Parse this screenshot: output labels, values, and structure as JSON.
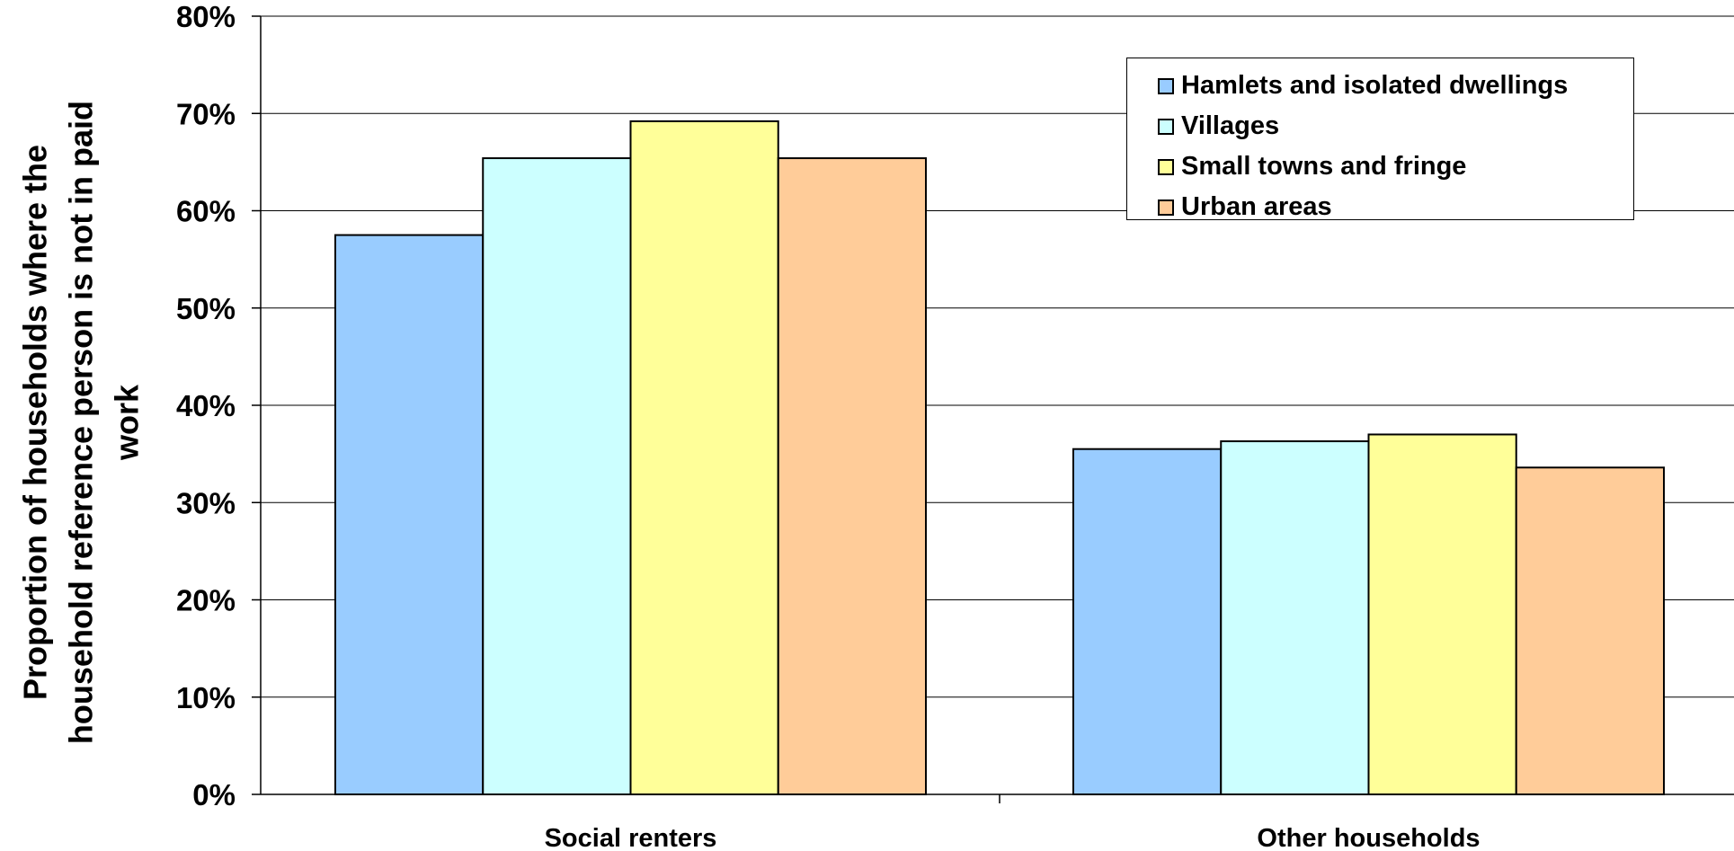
{
  "chart_data": {
    "type": "bar",
    "ylabel": "Proportion of households where the household reference person is not in paid work",
    "xlabel": "",
    "categories": [
      "Social renters",
      "Other households"
    ],
    "ylim": [
      0,
      80
    ],
    "yticks": [
      "0%",
      "10%",
      "20%",
      "30%",
      "40%",
      "50%",
      "60%",
      "70%",
      "80%"
    ],
    "grid": true,
    "legend_position": "top-right",
    "series": [
      {
        "name": "Hamlets and isolated dwellings",
        "color": "#99CCFF",
        "values": [
          57.5,
          35.5
        ]
      },
      {
        "name": "Villages",
        "color": "#CCFFFF",
        "values": [
          65.4,
          36.3
        ]
      },
      {
        "name": "Small towns and fringe",
        "color": "#FFFF99",
        "values": [
          69.2,
          37.0
        ]
      },
      {
        "name": "Urban areas",
        "color": "#FFCC99",
        "values": [
          65.4,
          33.6
        ]
      }
    ]
  }
}
